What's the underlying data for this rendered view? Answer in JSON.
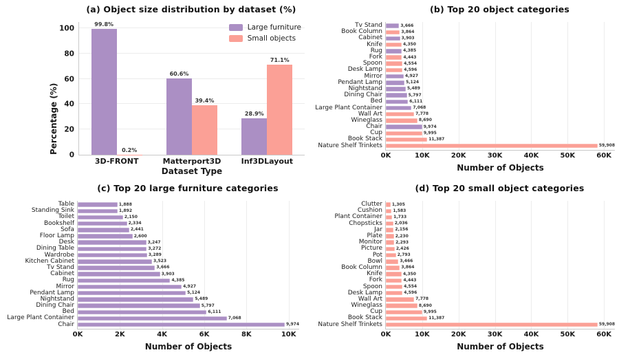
{
  "colors": {
    "large_furniture": "#ab8fc4",
    "small_objects": "#fba096",
    "grid": "#ececec",
    "spine": "#c9c9c9",
    "title_text": "#111111",
    "axis_text": "#1a1a1a",
    "value_text": "#333333"
  },
  "chart_data": [
    {
      "id": "a",
      "type": "bar",
      "title": "(a) Object size distribution by dataset (%)",
      "xlabel": "Dataset Type",
      "ylabel": "Percentage (%)",
      "categories": [
        "3D-FRONT",
        "Matterport3D",
        "Inf3DLayout"
      ],
      "series": [
        {
          "name": "Large furniture",
          "color_key": "large_furniture",
          "values": [
            99.8,
            60.6,
            28.9
          ],
          "labels": [
            "99.8%",
            "60.6%",
            "28.9%"
          ]
        },
        {
          "name": "Small objects",
          "color_key": "small_objects",
          "values": [
            0.2,
            39.4,
            71.1
          ],
          "labels": [
            "0.2%",
            "39.4%",
            "71.1%"
          ]
        }
      ],
      "ylim": [
        0,
        105
      ],
      "yticks": [
        0,
        20,
        40,
        60,
        80,
        100
      ],
      "grid": "horizontal",
      "legend_position": "top-right",
      "legend": [
        {
          "label": "Large furniture",
          "color_key": "large_furniture"
        },
        {
          "label": "Small objects",
          "color_key": "small_objects"
        }
      ]
    },
    {
      "id": "b",
      "type": "barh",
      "title": "(b) Top 20 object categories",
      "xlabel": "Number of Objects",
      "xlim": [
        0,
        63000
      ],
      "xticks": [
        0,
        10000,
        20000,
        30000,
        40000,
        50000,
        60000
      ],
      "xtick_labels": [
        "0K",
        "10K",
        "20K",
        "30K",
        "40K",
        "50K",
        "60K"
      ],
      "grid": "vertical",
      "items": [
        {
          "label": "Tv Stand",
          "value": 3666,
          "value_label": "3,666",
          "color_key": "large_furniture"
        },
        {
          "label": "Book Column",
          "value": 3864,
          "value_label": "3,864",
          "color_key": "small_objects"
        },
        {
          "label": "Cabinet",
          "value": 3903,
          "value_label": "3,903",
          "color_key": "large_furniture"
        },
        {
          "label": "Knife",
          "value": 4350,
          "value_label": "4,350",
          "color_key": "small_objects"
        },
        {
          "label": "Rug",
          "value": 4385,
          "value_label": "4,385",
          "color_key": "large_furniture"
        },
        {
          "label": "Fork",
          "value": 4443,
          "value_label": "4,443",
          "color_key": "small_objects"
        },
        {
          "label": "Spoon",
          "value": 4554,
          "value_label": "4,554",
          "color_key": "small_objects"
        },
        {
          "label": "Desk Lamp",
          "value": 4596,
          "value_label": "4,596",
          "color_key": "small_objects"
        },
        {
          "label": "Mirror",
          "value": 4927,
          "value_label": "4,927",
          "color_key": "large_furniture"
        },
        {
          "label": "Pendant Lamp",
          "value": 5124,
          "value_label": "5,124",
          "color_key": "large_furniture"
        },
        {
          "label": "Nightstand",
          "value": 5489,
          "value_label": "5,489",
          "color_key": "large_furniture"
        },
        {
          "label": "Dining Chair",
          "value": 5797,
          "value_label": "5,797",
          "color_key": "large_furniture"
        },
        {
          "label": "Bed",
          "value": 6111,
          "value_label": "6,111",
          "color_key": "large_furniture"
        },
        {
          "label": "Large Plant Container",
          "value": 7068,
          "value_label": "7,068",
          "color_key": "large_furniture"
        },
        {
          "label": "Wall Art",
          "value": 7778,
          "value_label": "7,778",
          "color_key": "small_objects"
        },
        {
          "label": "Wineglass",
          "value": 8690,
          "value_label": "8,690",
          "color_key": "small_objects"
        },
        {
          "label": "Chair",
          "value": 9974,
          "value_label": "9,974",
          "color_key": "large_furniture"
        },
        {
          "label": "Cup",
          "value": 9995,
          "value_label": "9,995",
          "color_key": "small_objects"
        },
        {
          "label": "Book Stack",
          "value": 11387,
          "value_label": "11,387",
          "color_key": "small_objects"
        },
        {
          "label": "Nature Shelf Trinkets",
          "value": 59908,
          "value_label": "59,908",
          "color_key": "small_objects"
        }
      ]
    },
    {
      "id": "c",
      "type": "barh",
      "title": "(c) Top 20 large furniture categories",
      "xlabel": "Number of Objects",
      "xlim": [
        0,
        10500
      ],
      "xticks": [
        0,
        2000,
        4000,
        6000,
        8000,
        10000
      ],
      "xtick_labels": [
        "0K",
        "2K",
        "4K",
        "6K",
        "8K",
        "10K"
      ],
      "grid": "vertical",
      "items": [
        {
          "label": "Table",
          "value": 1888,
          "value_label": "1,888",
          "color_key": "large_furniture"
        },
        {
          "label": "Standing Sink",
          "value": 1892,
          "value_label": "1,892",
          "color_key": "large_furniture"
        },
        {
          "label": "Toilet",
          "value": 2150,
          "value_label": "2,150",
          "color_key": "large_furniture"
        },
        {
          "label": "Bookshelf",
          "value": 2334,
          "value_label": "2,334",
          "color_key": "large_furniture"
        },
        {
          "label": "Sofa",
          "value": 2441,
          "value_label": "2,441",
          "color_key": "large_furniture"
        },
        {
          "label": "Floor Lamp",
          "value": 2600,
          "value_label": "2,600",
          "color_key": "large_furniture"
        },
        {
          "label": "Desk",
          "value": 3247,
          "value_label": "3,247",
          "color_key": "large_furniture"
        },
        {
          "label": "Dining Table",
          "value": 3272,
          "value_label": "3,272",
          "color_key": "large_furniture"
        },
        {
          "label": "Wardrobe",
          "value": 3289,
          "value_label": "3,289",
          "color_key": "large_furniture"
        },
        {
          "label": "Kitchen Cabinet",
          "value": 3523,
          "value_label": "3,523",
          "color_key": "large_furniture"
        },
        {
          "label": "Tv Stand",
          "value": 3666,
          "value_label": "3,666",
          "color_key": "large_furniture"
        },
        {
          "label": "Cabinet",
          "value": 3903,
          "value_label": "3,903",
          "color_key": "large_furniture"
        },
        {
          "label": "Rug",
          "value": 4385,
          "value_label": "4,385",
          "color_key": "large_furniture"
        },
        {
          "label": "Mirror",
          "value": 4927,
          "value_label": "4,927",
          "color_key": "large_furniture"
        },
        {
          "label": "Pendant Lamp",
          "value": 5124,
          "value_label": "5,124",
          "color_key": "large_furniture"
        },
        {
          "label": "Nightstand",
          "value": 5489,
          "value_label": "5,489",
          "color_key": "large_furniture"
        },
        {
          "label": "Dining Chair",
          "value": 5797,
          "value_label": "5,797",
          "color_key": "large_furniture"
        },
        {
          "label": "Bed",
          "value": 6111,
          "value_label": "6,111",
          "color_key": "large_furniture"
        },
        {
          "label": "Large Plant Container",
          "value": 7068,
          "value_label": "7,068",
          "color_key": "large_furniture"
        },
        {
          "label": "Chair",
          "value": 9974,
          "value_label": "9,974",
          "color_key": "large_furniture"
        }
      ]
    },
    {
      "id": "d",
      "type": "barh",
      "title": "(d) Top 20 small object categories",
      "xlabel": "Number of Objects",
      "xlim": [
        0,
        63000
      ],
      "xticks": [
        0,
        10000,
        20000,
        30000,
        40000,
        50000,
        60000
      ],
      "xtick_labels": [
        "0K",
        "10K",
        "20K",
        "30K",
        "40K",
        "50K",
        "60K"
      ],
      "grid": "vertical",
      "items": [
        {
          "label": "Clutter",
          "value": 1305,
          "value_label": "1,305",
          "color_key": "small_objects"
        },
        {
          "label": "Cushion",
          "value": 1583,
          "value_label": "1,583",
          "color_key": "small_objects"
        },
        {
          "label": "Plant Container",
          "value": 1733,
          "value_label": "1,733",
          "color_key": "small_objects"
        },
        {
          "label": "Chopsticks",
          "value": 2036,
          "value_label": "2,036",
          "color_key": "small_objects"
        },
        {
          "label": "Jar",
          "value": 2156,
          "value_label": "2,156",
          "color_key": "small_objects"
        },
        {
          "label": "Plate",
          "value": 2230,
          "value_label": "2,230",
          "color_key": "small_objects"
        },
        {
          "label": "Monitor",
          "value": 2293,
          "value_label": "2,293",
          "color_key": "small_objects"
        },
        {
          "label": "Picture",
          "value": 2426,
          "value_label": "2,426",
          "color_key": "small_objects"
        },
        {
          "label": "Pot",
          "value": 2793,
          "value_label": "2,793",
          "color_key": "small_objects"
        },
        {
          "label": "Bowl",
          "value": 3466,
          "value_label": "3,466",
          "color_key": "small_objects"
        },
        {
          "label": "Book Column",
          "value": 3864,
          "value_label": "3,864",
          "color_key": "small_objects"
        },
        {
          "label": "Knife",
          "value": 4350,
          "value_label": "4,350",
          "color_key": "small_objects"
        },
        {
          "label": "Fork",
          "value": 4443,
          "value_label": "4,443",
          "color_key": "small_objects"
        },
        {
          "label": "Spoon",
          "value": 4554,
          "value_label": "4,554",
          "color_key": "small_objects"
        },
        {
          "label": "Desk Lamp",
          "value": 4596,
          "value_label": "4,596",
          "color_key": "small_objects"
        },
        {
          "label": "Wall Art",
          "value": 7778,
          "value_label": "7,778",
          "color_key": "small_objects"
        },
        {
          "label": "Wineglass",
          "value": 8690,
          "value_label": "8,690",
          "color_key": "small_objects"
        },
        {
          "label": "Cup",
          "value": 9995,
          "value_label": "9,995",
          "color_key": "small_objects"
        },
        {
          "label": "Book Stack",
          "value": 11387,
          "value_label": "11,387",
          "color_key": "small_objects"
        },
        {
          "label": "Nature Shelf Trinkets",
          "value": 59908,
          "value_label": "59,908",
          "color_key": "small_objects"
        }
      ]
    }
  ]
}
